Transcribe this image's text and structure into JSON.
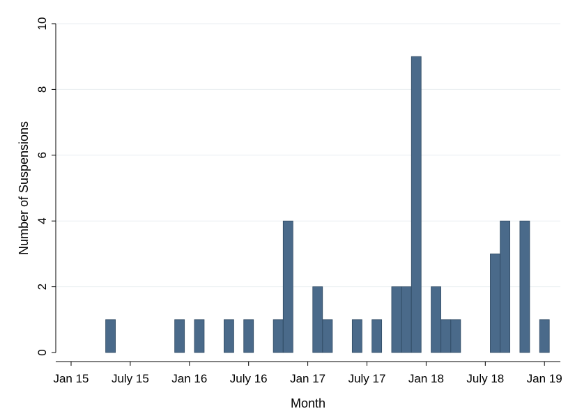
{
  "chart_data": {
    "type": "bar",
    "title": "",
    "xlabel": "Month",
    "ylabel": "Number of Suspensions",
    "ylim": [
      0,
      10
    ],
    "yticks": [
      0,
      2,
      4,
      6,
      8,
      10
    ],
    "xlim": [
      "2015-01",
      "2019-02"
    ],
    "xticks": [
      {
        "value": "2015-01",
        "label": "Jan 15"
      },
      {
        "value": "2015-07",
        "label": "July 15"
      },
      {
        "value": "2016-01",
        "label": "Jan 16"
      },
      {
        "value": "2016-07",
        "label": "July 16"
      },
      {
        "value": "2017-01",
        "label": "Jan 17"
      },
      {
        "value": "2017-07",
        "label": "July 17"
      },
      {
        "value": "2018-01",
        "label": "Jan 18"
      },
      {
        "value": "2018-07",
        "label": "July 18"
      },
      {
        "value": "2019-01",
        "label": "Jan 19"
      }
    ],
    "grid": true,
    "bar_color": "#4a6a8a",
    "data": [
      {
        "month": "2015-05",
        "value": 1
      },
      {
        "month": "2015-12",
        "value": 1
      },
      {
        "month": "2016-02",
        "value": 1
      },
      {
        "month": "2016-05",
        "value": 1
      },
      {
        "month": "2016-07",
        "value": 1
      },
      {
        "month": "2016-10",
        "value": 1
      },
      {
        "month": "2016-11",
        "value": 4
      },
      {
        "month": "2017-02",
        "value": 2
      },
      {
        "month": "2017-03",
        "value": 1
      },
      {
        "month": "2017-06",
        "value": 1
      },
      {
        "month": "2017-08",
        "value": 1
      },
      {
        "month": "2017-10",
        "value": 2
      },
      {
        "month": "2017-11",
        "value": 2
      },
      {
        "month": "2017-12",
        "value": 9
      },
      {
        "month": "2018-02",
        "value": 2
      },
      {
        "month": "2018-03",
        "value": 1
      },
      {
        "month": "2018-04",
        "value": 1
      },
      {
        "month": "2018-08",
        "value": 3
      },
      {
        "month": "2018-09",
        "value": 4
      },
      {
        "month": "2018-11",
        "value": 4
      },
      {
        "month": "2019-01",
        "value": 1
      }
    ]
  }
}
